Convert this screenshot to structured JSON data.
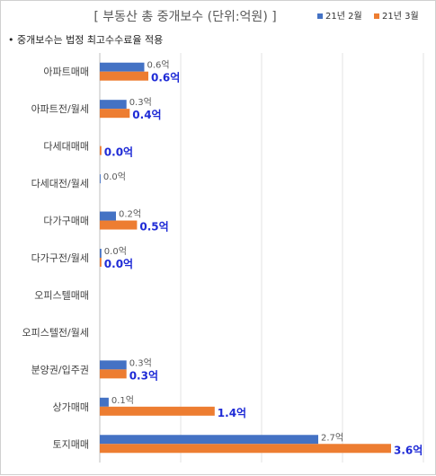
{
  "chart_data": {
    "type": "bar",
    "orientation": "horizontal",
    "title": "[ 부동산 총 중개보수 (단위:억원) ]",
    "note": "• 중개보수는 법정 최고수수료율 적용",
    "categories": [
      "아파트매매",
      "아파트전/월세",
      "다세대매매",
      "다세대전/월세",
      "다가구매매",
      "다가구전/월세",
      "오피스텔매매",
      "오피스텔전/월세",
      "분양권/입주권",
      "상가매매",
      "토지매매"
    ],
    "series": [
      {
        "name": "21년 2월",
        "color": "#4472c4",
        "values": [
          0.55,
          0.33,
          0.0,
          0.01,
          0.2,
          0.02,
          0.0,
          0.0,
          0.33,
          0.11,
          2.7
        ],
        "labels": [
          "0.6억",
          "0.3억",
          "",
          "0.0억",
          "0.2억",
          "0.0억",
          "",
          "",
          "0.3억",
          "0.1억",
          "2.7억"
        ]
      },
      {
        "name": "21년 3월",
        "color": "#ed7d31",
        "values": [
          0.6,
          0.37,
          0.02,
          0.0,
          0.46,
          0.02,
          0.0,
          0.0,
          0.33,
          1.42,
          3.6
        ],
        "labels": [
          "0.6억",
          "0.4억",
          "0.0억",
          "",
          "0.5억",
          "0.0억",
          "",
          "",
          "0.3억",
          "1.4억",
          "3.6억"
        ]
      }
    ],
    "xlim": [
      0,
      4.0
    ],
    "grid": true,
    "legend_position": "top-right"
  }
}
